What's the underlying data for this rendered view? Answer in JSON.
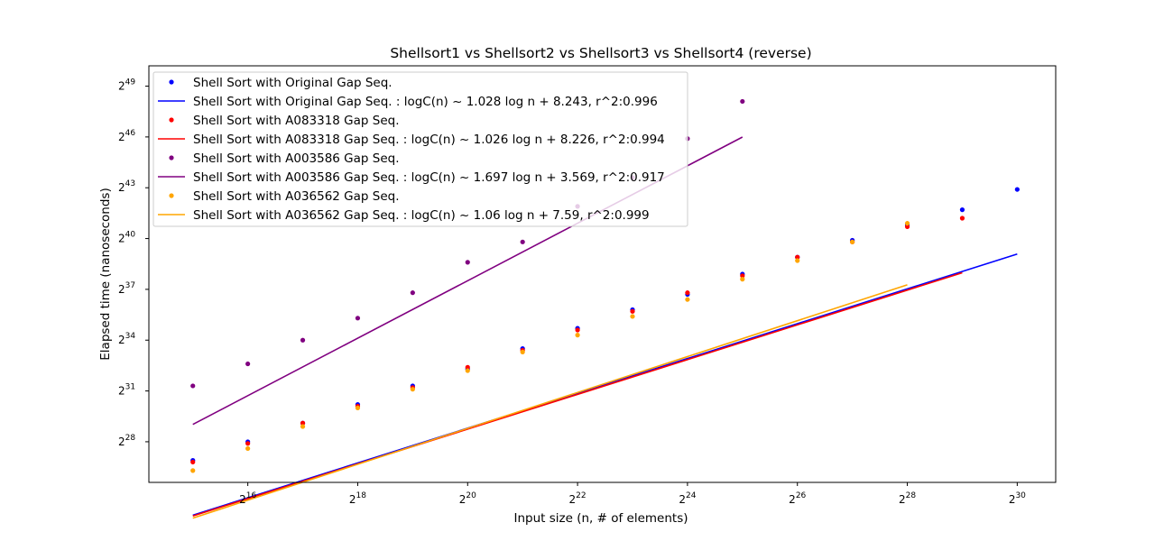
{
  "chart_data": {
    "type": "scatter",
    "title": "Shellsort1 vs Shellsort2 vs Shellsort3 vs Shellsort4 (reverse)",
    "xlabel": "Input size (n, # of elements)",
    "ylabel": "Elapsed time (nanoseconds)",
    "scale": "log2",
    "xlim_log2": [
      14.2,
      30.7
    ],
    "ylim_log2": [
      25.6,
      50.2
    ],
    "x_ticks_log2": [
      16,
      18,
      20,
      22,
      24,
      26,
      28,
      30
    ],
    "y_ticks_log2": [
      28,
      31,
      34,
      37,
      40,
      43,
      46,
      49
    ],
    "tick_base": "2",
    "grid": false,
    "legend_position": "upper-left",
    "series": [
      {
        "name": "Shell Sort with Original Gap Seq.",
        "color": "#0000ff",
        "x_log2": [
          15,
          16,
          17,
          18,
          19,
          20,
          21,
          22,
          23,
          24,
          25,
          26,
          27,
          28,
          29,
          30
        ],
        "y_log2": [
          26.9,
          28.0,
          29.1,
          30.2,
          31.3,
          32.3,
          33.5,
          34.7,
          35.8,
          36.7,
          37.9,
          38.9,
          39.9,
          40.8,
          41.7,
          42.9
        ],
        "fit_label": "Shell Sort with Original Gap Seq. : logC(n) ~ 1.028 log n  + 8.243, r^2:0.996",
        "fit": {
          "slope": 1.028,
          "intercept": 8.243
        }
      },
      {
        "name": "Shell Sort with A083318 Gap Seq.",
        "color": "#ff0000",
        "x_log2": [
          15,
          16,
          17,
          18,
          19,
          20,
          21,
          22,
          23,
          24,
          25,
          26,
          27,
          28,
          29
        ],
        "y_log2": [
          26.8,
          27.9,
          29.1,
          30.1,
          31.2,
          32.4,
          33.4,
          34.6,
          35.7,
          36.8,
          37.8,
          38.9,
          39.8,
          40.7,
          41.2
        ],
        "fit_label": "Shell Sort with A083318 Gap Seq. : logC(n) ~ 1.026 log n  + 8.226, r^2:0.994",
        "fit": {
          "slope": 1.026,
          "intercept": 8.226
        }
      },
      {
        "name": "Shell Sort with A003586 Gap Seq.",
        "color": "#800080",
        "x_log2": [
          15,
          16,
          17,
          18,
          19,
          20,
          21,
          22,
          23,
          24,
          25
        ],
        "y_log2": [
          31.3,
          32.6,
          34.0,
          35.3,
          36.8,
          38.6,
          39.8,
          41.9,
          43.6,
          45.9,
          48.1
        ],
        "fit_label": "Shell Sort with A003586 Gap Seq. : logC(n) ~ 1.697 log n  + 3.569, r^2:0.917",
        "fit": {
          "slope": 1.697,
          "intercept": 3.569
        }
      },
      {
        "name": "Shell Sort with A036562 Gap Seq.",
        "color": "#ffa500",
        "x_log2": [
          15,
          16,
          17,
          18,
          19,
          20,
          21,
          22,
          23,
          24,
          25,
          26,
          27,
          28
        ],
        "y_log2": [
          26.3,
          27.6,
          28.9,
          30.0,
          31.1,
          32.2,
          33.3,
          34.3,
          35.4,
          36.4,
          37.6,
          38.7,
          39.8,
          40.9
        ],
        "fit_label": "Shell Sort with A036562 Gap Seq. : logC(n) ~ 1.06 log n  + 7.59, r^2:0.999",
        "fit": {
          "slope": 1.06,
          "intercept": 7.59
        }
      }
    ]
  }
}
